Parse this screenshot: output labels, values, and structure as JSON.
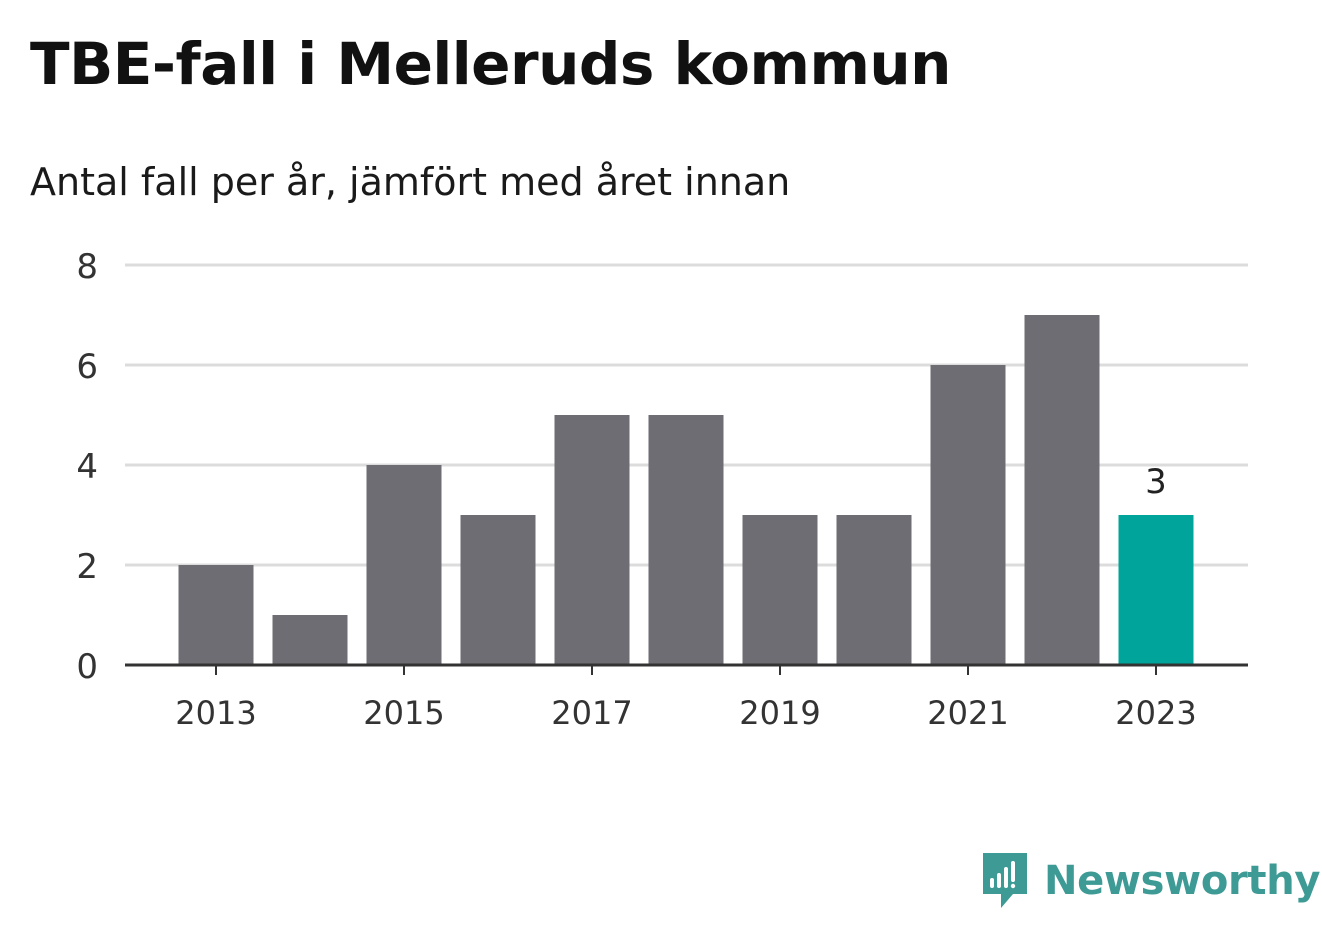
{
  "title": "TBE-fall i Melleruds kommun",
  "subtitle": "Antal fall per år, jämfört med året innan",
  "brand": "Newsworthy",
  "colors": {
    "bar": "#6e6d73",
    "highlight": "#00a49a",
    "grid": "#dcdcdc",
    "axis": "#333333",
    "text": "#333333",
    "brand": "#3d9a94"
  },
  "chart_data": {
    "type": "bar",
    "categories": [
      "2013",
      "2014",
      "2015",
      "2016",
      "2017",
      "2018",
      "2019",
      "2020",
      "2021",
      "2022",
      "2023"
    ],
    "values": [
      2,
      1,
      4,
      3,
      5,
      5,
      3,
      3,
      6,
      7,
      3
    ],
    "x_tick_labels": [
      "2013",
      "2015",
      "2017",
      "2019",
      "2021",
      "2023"
    ],
    "y_ticks": [
      0,
      2,
      4,
      6,
      8
    ],
    "ylim": [
      0,
      8
    ],
    "highlight_category": "2023",
    "data_labels": [
      {
        "category": "2023",
        "text": "3"
      }
    ],
    "grid": true,
    "xlabel": "",
    "ylabel": ""
  }
}
